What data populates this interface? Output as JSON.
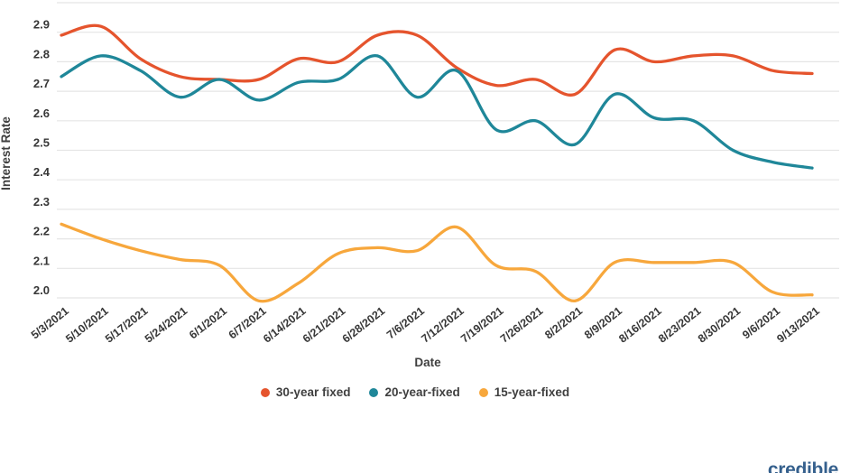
{
  "chart_data": {
    "type": "line",
    "title": "",
    "xlabel": "Date",
    "ylabel": "Interest Rate",
    "x": [
      "5/3/2021",
      "5/10/2021",
      "5/17/2021",
      "5/24/2021",
      "6/1/2021",
      "6/7/2021",
      "6/14/2021",
      "6/21/2021",
      "6/28/2021",
      "7/6/2021",
      "7/12/2021",
      "7/19/2021",
      "7/26/2021",
      "8/2/2021",
      "8/9/2021",
      "8/16/2021",
      "8/23/2021",
      "8/30/2021",
      "9/6/2021",
      "9/13/2021"
    ],
    "series": [
      {
        "name": "30-year fixed",
        "color": "#e5542d",
        "values": [
          2.89,
          2.92,
          2.81,
          2.75,
          2.74,
          2.74,
          2.81,
          2.8,
          2.89,
          2.89,
          2.78,
          2.72,
          2.74,
          2.69,
          2.84,
          2.8,
          2.82,
          2.82,
          2.77,
          2.76
        ]
      },
      {
        "name": "20-year-fixed",
        "color": "#1f8799",
        "values": [
          2.75,
          2.82,
          2.77,
          2.68,
          2.74,
          2.67,
          2.73,
          2.74,
          2.82,
          2.68,
          2.77,
          2.57,
          2.6,
          2.52,
          2.69,
          2.61,
          2.6,
          2.5,
          2.46,
          2.44
        ]
      },
      {
        "name": "15-year-fixed",
        "color": "#f7a73c",
        "values": [
          2.25,
          2.2,
          2.16,
          2.13,
          2.11,
          1.99,
          2.05,
          2.15,
          2.17,
          2.16,
          2.24,
          2.11,
          2.09,
          1.99,
          2.12,
          2.12,
          2.12,
          2.12,
          2.02,
          2.01
        ]
      }
    ],
    "yticks": [
      "2.0",
      "2.1",
      "2.2",
      "2.3",
      "2.4",
      "2.5",
      "2.6",
      "2.7",
      "2.8",
      "2.9"
    ],
    "ylim": [
      1.95,
      3.0
    ],
    "grid": true,
    "legend_position": "bottom"
  },
  "watermark": {
    "text": "credible"
  },
  "style": {
    "gridline_color": "#e5e5e5",
    "tick_label_color": "#373737",
    "background": "#ffffff"
  }
}
